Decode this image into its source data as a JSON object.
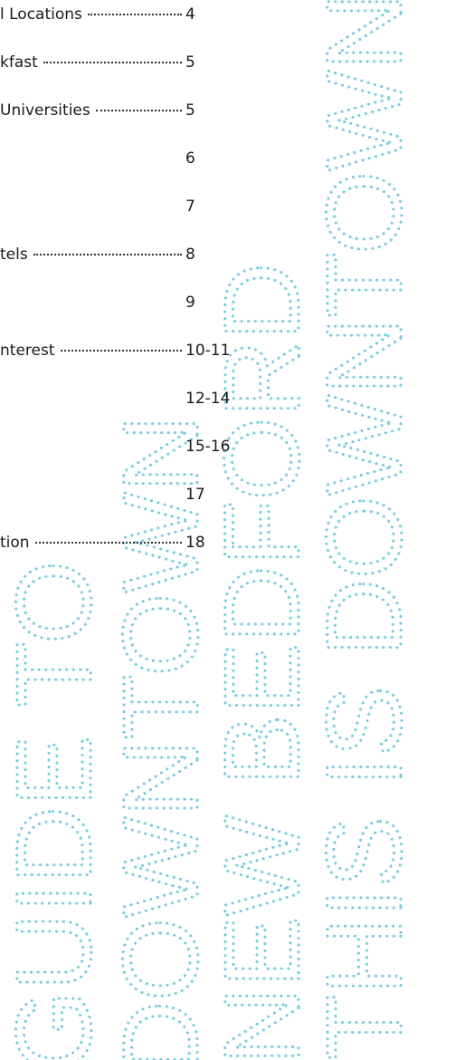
{
  "toc": [
    {
      "label": "l Locations",
      "page": "4"
    },
    {
      "label": "kfast",
      "page": "5"
    },
    {
      "label": "Universities",
      "page": "5"
    },
    {
      "page": "6"
    },
    {
      "page": "7"
    },
    {
      "label": "tels",
      "page": "8"
    },
    {
      "page": "9"
    },
    {
      "label": "nterest",
      "page": "10-11"
    },
    {
      "page": "12-14"
    },
    {
      "page": "15-16"
    },
    {
      "page": "17"
    },
    {
      "label": "tion",
      "page": "18"
    }
  ],
  "decoration": [
    "GUIDE TO",
    "DOWNTOWN",
    "NEW BEDFORD",
    "THIS IS DOWNTOWN"
  ]
}
